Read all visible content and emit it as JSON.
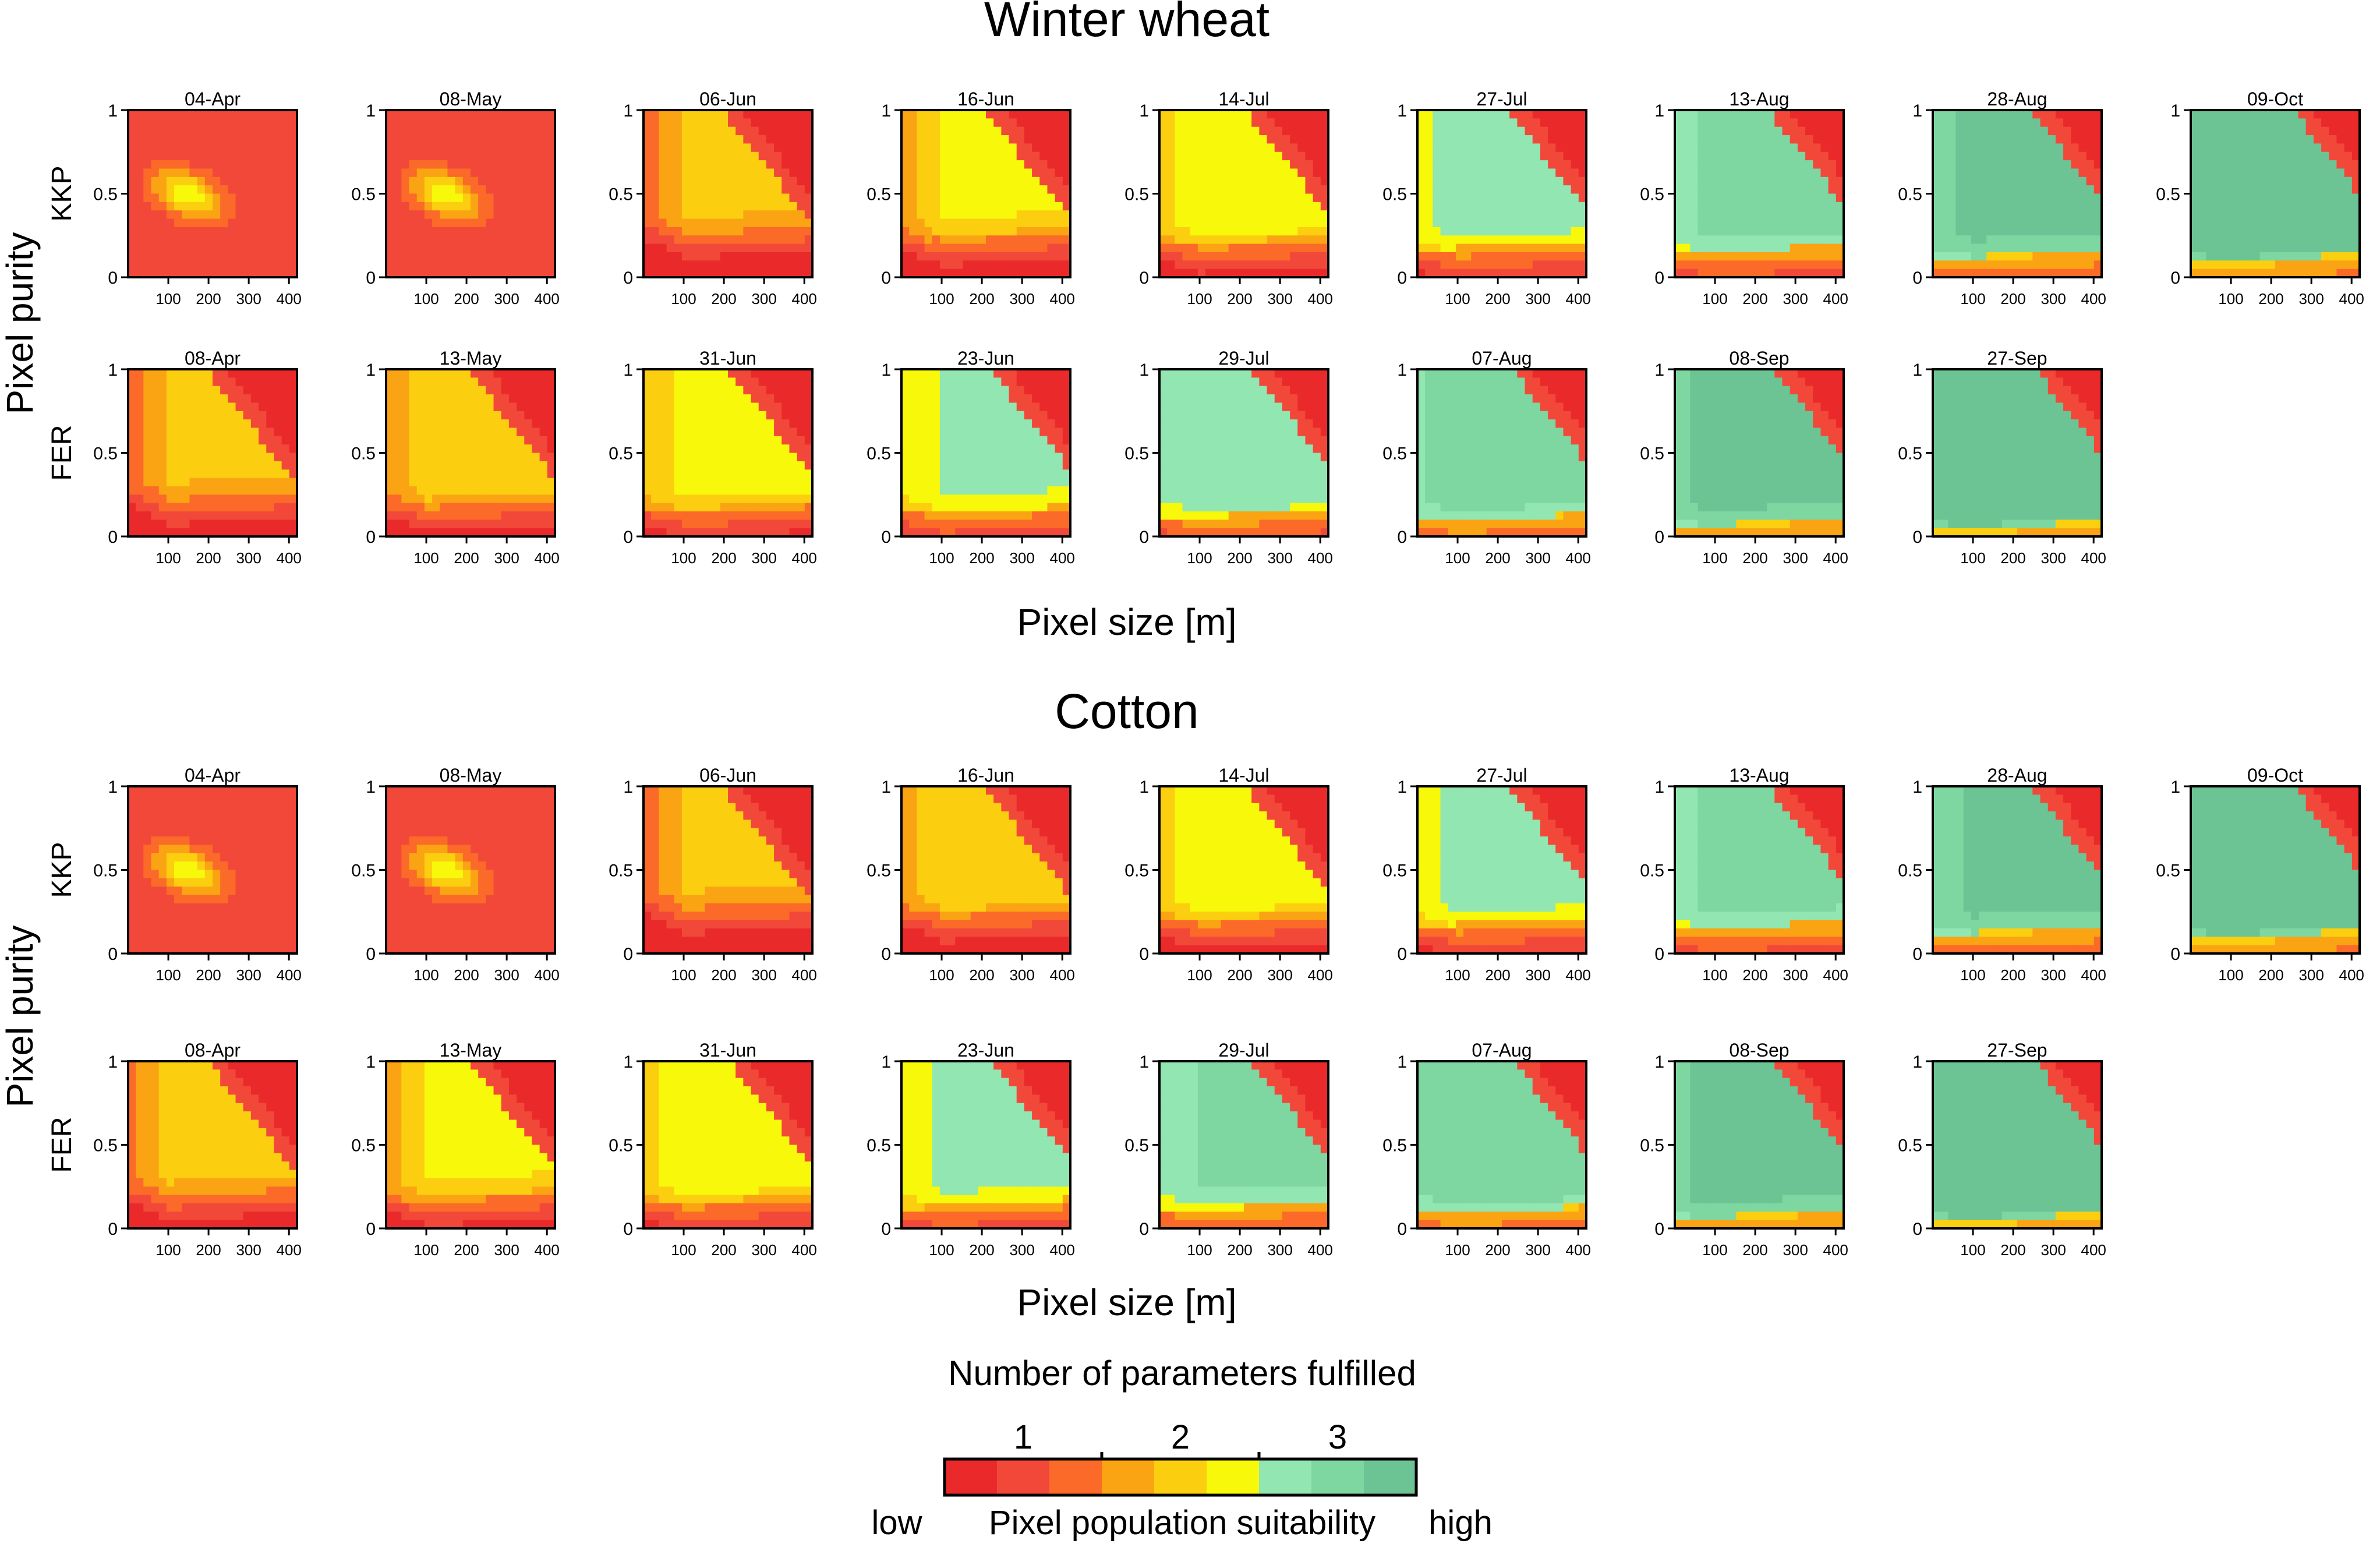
{
  "figure": {
    "kind": "small-multiples heatmap figure",
    "blocks": [
      {
        "title": "Winter wheat",
        "crop": "wheat",
        "ylabel": "Pixel purity",
        "xlabel": "Pixel size [m]",
        "rows": [
          {
            "label": "KKP",
            "dates": [
              "04-Apr",
              "08-May",
              "06-Jun",
              "16-Jun",
              "14-Jul",
              "27-Jul",
              "13-Aug",
              "28-Aug",
              "09-Oct"
            ]
          },
          {
            "label": "FER",
            "dates": [
              "08-Apr",
              "13-May",
              "31-Jun",
              "23-Jun",
              "29-Jul",
              "07-Aug",
              "08-Sep",
              "27-Sep"
            ]
          }
        ]
      },
      {
        "title": "Cotton",
        "crop": "cotton",
        "ylabel": "Pixel purity",
        "xlabel": "Pixel size [m]",
        "rows": [
          {
            "label": "KKP",
            "dates": [
              "04-Apr",
              "08-May",
              "06-Jun",
              "16-Jun",
              "14-Jul",
              "27-Jul",
              "13-Aug",
              "28-Aug",
              "09-Oct"
            ]
          },
          {
            "label": "FER",
            "dates": [
              "08-Apr",
              "13-May",
              "31-Jun",
              "23-Jun",
              "29-Jul",
              "07-Aug",
              "08-Sep",
              "27-Sep"
            ]
          }
        ]
      }
    ],
    "axis": {
      "x_ticks": [
        "100",
        "200",
        "300",
        "400"
      ],
      "x_range": [
        0,
        420
      ],
      "y_ticks": [
        "0",
        "0.5",
        "1"
      ],
      "y_range": [
        0,
        1
      ]
    },
    "legend": {
      "title": "Number of parameters fulfilled",
      "group_labels": [
        "1",
        "2",
        "3"
      ],
      "colors": [
        "#ea2a2a",
        "#f2483a",
        "#fb6a28",
        "#faa414",
        "#fbcf10",
        "#f8f80a",
        "#91e6b1",
        "#7ed6a1",
        "#6cc494"
      ],
      "left_label": "low",
      "center_label": "Pixel population suitability",
      "right_label": "high"
    }
  },
  "chart_data": [
    {
      "type": "heatmap",
      "title": "Winter wheat",
      "xlabel": "Pixel size [m]",
      "ylabel": "Pixel purity",
      "x_range": [
        0,
        420
      ],
      "y_range": [
        0,
        1
      ],
      "value_scale": "suitability class 0 (low) – 8 (high), grouped into 1 / 2 / 3 parameters fulfilled",
      "panels": {
        "KKP": [
          "04-Apr",
          "08-May",
          "06-Jun",
          "16-Jun",
          "14-Jul",
          "27-Jul",
          "13-Aug",
          "28-Aug",
          "09-Oct"
        ],
        "FER": [
          "08-Apr",
          "13-May",
          "31-Jun",
          "23-Jun",
          "29-Jul",
          "07-Aug",
          "08-Sep",
          "27-Sep"
        ]
      }
    },
    {
      "type": "heatmap",
      "title": "Cotton",
      "xlabel": "Pixel size [m]",
      "ylabel": "Pixel purity",
      "x_range": [
        0,
        420
      ],
      "y_range": [
        0,
        1
      ],
      "value_scale": "suitability class 0 (low) – 8 (high), grouped into 1 / 2 / 3 parameters fulfilled",
      "panels": {
        "KKP": [
          "04-Apr",
          "08-May",
          "06-Jun",
          "16-Jun",
          "14-Jul",
          "27-Jul",
          "13-Aug",
          "28-Aug",
          "09-Oct"
        ],
        "FER": [
          "08-Apr",
          "13-May",
          "31-Jun",
          "23-Jun",
          "29-Jul",
          "07-Aug",
          "08-Sep",
          "27-Sep"
        ]
      }
    }
  ]
}
